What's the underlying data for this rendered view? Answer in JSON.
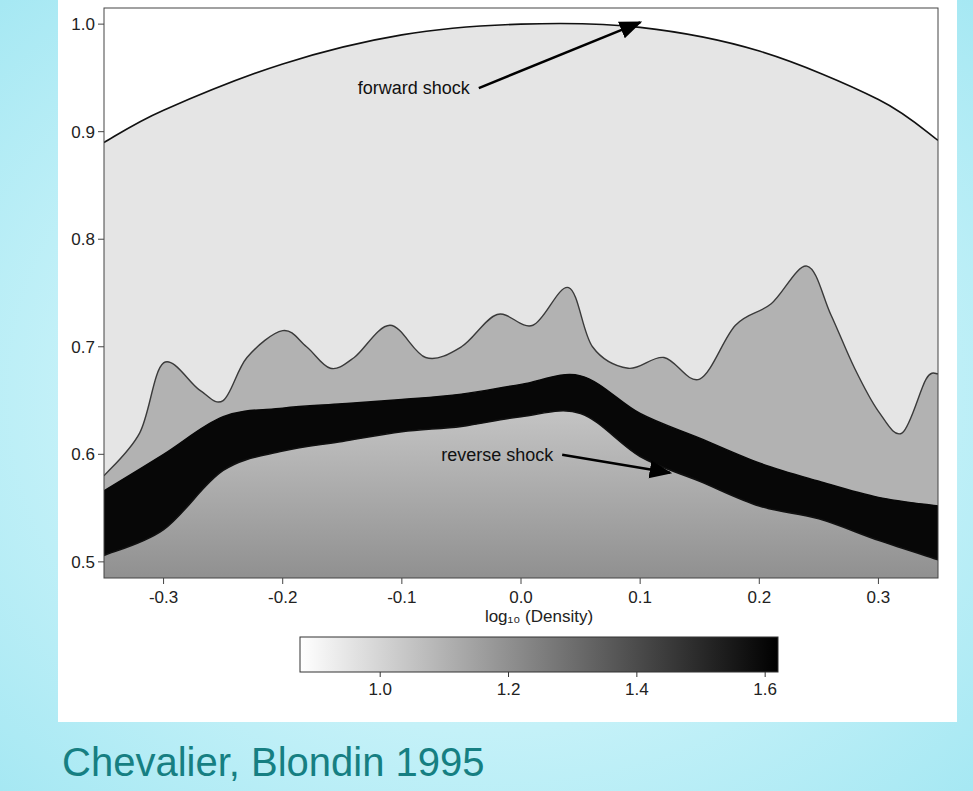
{
  "chart_data": {
    "type": "image",
    "caption": "Chevalier, Blondin 1995",
    "xlim": [
      -0.35,
      0.35
    ],
    "xticks": [
      -0.3,
      -0.2,
      -0.1,
      {
        "value": 0,
        "label": "0.0"
      },
      0.1,
      0.2,
      0.3
    ],
    "ylim": [
      0.485,
      1.015
    ],
    "yticks": [
      0.5,
      0.6,
      0.7,
      0.8,
      0.9,
      {
        "value": 1,
        "label": "1.0"
      }
    ],
    "colorbar": {
      "label": "log₁₀ (Density)",
      "lim": [
        0.875,
        1.62
      ],
      "ticks": [
        {
          "value": 1,
          "label": "1.0"
        },
        1.2,
        1.4,
        1.6
      ]
    },
    "series": [
      {
        "name": "forward shock",
        "type": "line",
        "x": [
          -0.35,
          -0.3,
          -0.2,
          -0.1,
          0,
          0.1,
          0.2,
          0.3,
          0.35
        ],
        "values": [
          0.89,
          0.92,
          0.963,
          0.99,
          1.0,
          0.997,
          0.975,
          0.93,
          0.892
        ],
        "density": 0.95
      },
      {
        "type": "area",
        "x": [
          -0.35,
          -0.32,
          -0.3,
          -0.27,
          -0.25,
          -0.23,
          -0.2,
          -0.18,
          -0.16,
          -0.14,
          -0.11,
          -0.08,
          -0.05,
          -0.02,
          0.01,
          0.04,
          0.06,
          0.09,
          0.12,
          0.15,
          0.18,
          0.21,
          0.24,
          0.26,
          0.28,
          0.3,
          0.32,
          0.34,
          0.35
        ],
        "values": [
          0.58,
          0.62,
          0.685,
          0.66,
          0.65,
          0.69,
          0.715,
          0.7,
          0.68,
          0.69,
          0.72,
          0.69,
          0.7,
          0.73,
          0.72,
          0.755,
          0.7,
          0.68,
          0.69,
          0.67,
          0.72,
          0.74,
          0.775,
          0.73,
          0.68,
          0.64,
          0.62,
          0.67,
          0.675
        ],
        "density": 1.1
      },
      {
        "type": "area",
        "x": [
          -0.35,
          -0.3,
          -0.25,
          -0.2,
          -0.15,
          -0.1,
          -0.05,
          0,
          0.05,
          0.1,
          0.15,
          0.2,
          0.25,
          0.3,
          0.35
        ],
        "values": [
          0.566,
          0.6,
          0.635,
          0.643,
          0.647,
          0.651,
          0.656,
          0.665,
          0.673,
          0.638,
          0.615,
          0.592,
          0.575,
          0.56,
          0.552
        ],
        "density": 1.6
      },
      {
        "name": "reverse shock",
        "type": "line",
        "x": [
          -0.35,
          -0.3,
          -0.25,
          -0.2,
          -0.15,
          -0.1,
          -0.05,
          0,
          0.05,
          0.1,
          0.15,
          0.2,
          0.25,
          0.3,
          0.35
        ],
        "values": [
          0.506,
          0.53,
          0.585,
          0.603,
          0.612,
          0.621,
          0.626,
          0.635,
          0.638,
          0.598,
          0.575,
          0.552,
          0.54,
          0.52,
          0.502
        ],
        "density": [
          1.05,
          1.2
        ]
      }
    ]
  }
}
